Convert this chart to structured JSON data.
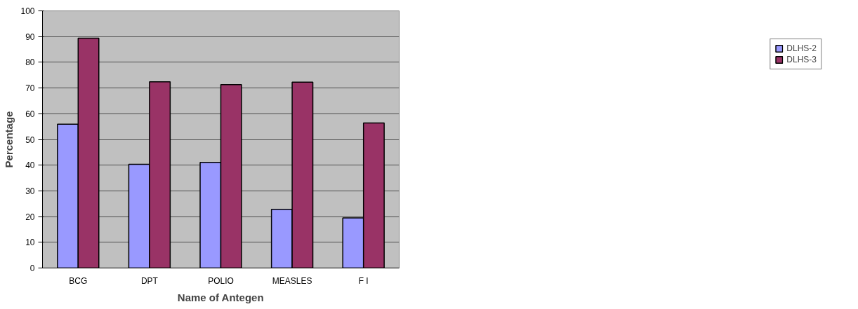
{
  "chart_data": {
    "type": "bar",
    "xlabel": "Name of Antegen",
    "ylabel": "Percentage",
    "categories": [
      "BCG",
      "DPT",
      "POLIO",
      "MEASLES",
      "F I"
    ],
    "series": [
      {
        "name": "DLHS-2",
        "color": "#9999ff",
        "values": [
          55.9,
          40.3,
          41.1,
          22.8,
          19.5
        ]
      },
      {
        "name": "DLHS-3",
        "color": "#993366",
        "values": [
          89.4,
          72.4,
          71.3,
          72.3,
          56.4
        ]
      }
    ],
    "ylim": [
      0,
      100
    ],
    "yticks": [
      0,
      10,
      20,
      30,
      40,
      50,
      60,
      70,
      80,
      90,
      100
    ],
    "grid": "y",
    "legend": "right"
  }
}
